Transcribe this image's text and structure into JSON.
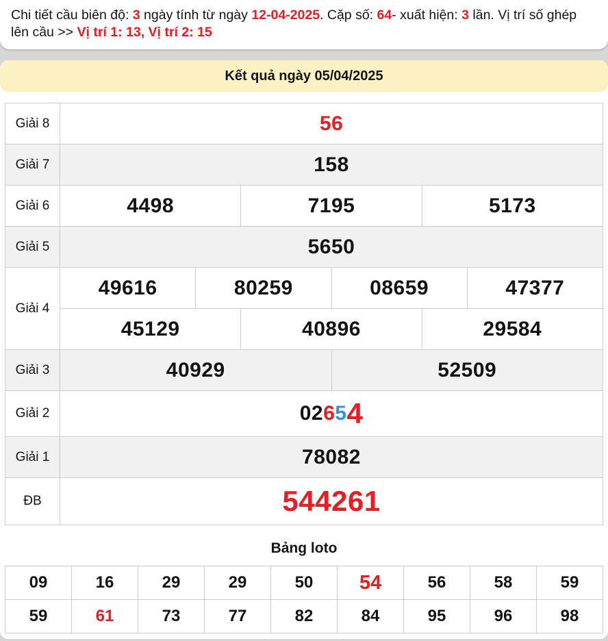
{
  "colors": {
    "red": "#ec1b24",
    "blue": "#3b8ee5",
    "banner_bg": "#fcf1c3",
    "row_shade": "#f1f1f1",
    "page_bg": "#d6d6d6",
    "border": "#cccccc"
  },
  "header": {
    "segments": [
      {
        "t": "Chi tiết cầu biên độ: ",
        "c": "black"
      },
      {
        "t": "3",
        "c": "red"
      },
      {
        "t": " ngày tính từ ngày ",
        "c": "black"
      },
      {
        "t": "12-04-2025",
        "c": "red"
      },
      {
        "t": ". Cặp số: ",
        "c": "black"
      },
      {
        "t": "64",
        "c": "red"
      },
      {
        "t": "- xuất hiện: ",
        "c": "black"
      },
      {
        "t": "3",
        "c": "red"
      },
      {
        "t": " lần. Vị trí số ghép lên cầu >> ",
        "c": "black"
      },
      {
        "t": "Vị trí 1: 13, Vị trí 2: 15",
        "c": "red"
      }
    ]
  },
  "banner": {
    "title": "Kết quả ngày 05/04/2025"
  },
  "results": {
    "rows": [
      {
        "label": "Giải 8",
        "subrows": [
          [
            {
              "t": "56",
              "c": "red"
            }
          ]
        ]
      },
      {
        "label": "Giải 7",
        "subrows": [
          [
            {
              "t": "158"
            }
          ]
        ]
      },
      {
        "label": "Giải 6",
        "subrows": [
          [
            {
              "t": "4498"
            },
            {
              "t": "7195"
            },
            {
              "t": "5173"
            }
          ]
        ]
      },
      {
        "label": "Giải 5",
        "subrows": [
          [
            {
              "t": "5650"
            }
          ]
        ]
      },
      {
        "label": "Giải 4",
        "subrows": [
          [
            {
              "t": "49616"
            },
            {
              "t": "80259"
            },
            {
              "t": "08659"
            },
            {
              "t": "47377"
            }
          ],
          [
            {
              "t": "45129"
            },
            {
              "t": "40896"
            },
            {
              "t": "29584"
            }
          ]
        ]
      },
      {
        "label": "Giải 3",
        "subrows": [
          [
            {
              "t": "40929"
            },
            {
              "t": "52509"
            }
          ]
        ]
      },
      {
        "label": "Giải 2",
        "subrows": [
          [
            {
              "parts": [
                {
                  "t": "02"
                },
                {
                  "t": "6",
                  "c": "red"
                },
                {
                  "t": "5",
                  "c": "blue"
                },
                {
                  "t": "4",
                  "c": "red",
                  "big": true
                }
              ]
            }
          ]
        ]
      },
      {
        "label": "Giải 1",
        "subrows": [
          [
            {
              "t": "78082"
            }
          ]
        ]
      },
      {
        "label": "ĐB",
        "subrows": [
          [
            {
              "t": "544261",
              "c": "red",
              "big": true
            }
          ]
        ]
      }
    ]
  },
  "loto": {
    "title": "Bảng loto",
    "rows": [
      [
        {
          "t": "09"
        },
        {
          "t": "16"
        },
        {
          "t": "29"
        },
        {
          "t": "29"
        },
        {
          "t": "50"
        },
        {
          "t": "54",
          "c": "red",
          "big": true
        },
        {
          "t": "56"
        },
        {
          "t": "58"
        },
        {
          "t": "59"
        }
      ],
      [
        {
          "t": "59"
        },
        {
          "t": "61",
          "c": "red"
        },
        {
          "t": "73"
        },
        {
          "t": "77"
        },
        {
          "t": "82"
        },
        {
          "t": "84"
        },
        {
          "t": "95"
        },
        {
          "t": "96"
        },
        {
          "t": "98"
        }
      ]
    ]
  }
}
